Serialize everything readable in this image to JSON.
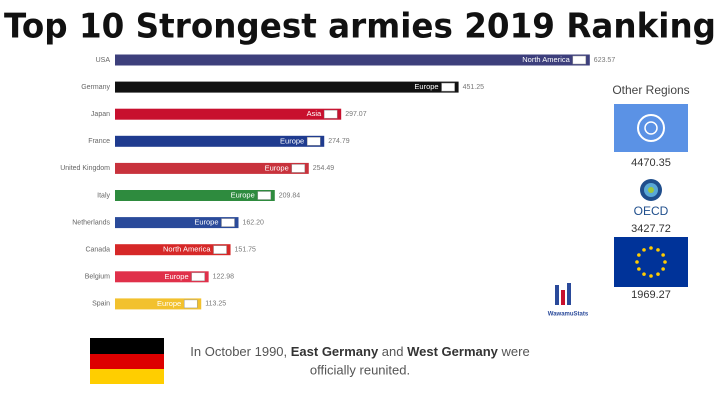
{
  "chart_data": {
    "type": "bar",
    "orientation": "horizontal",
    "title": "Top 10 Strongest armies 2019 Ranking",
    "categories": [
      "USA",
      "Germany",
      "Japan",
      "France",
      "United Kingdom",
      "Italy",
      "Netherlands",
      "Canada",
      "Belgium",
      "Spain"
    ],
    "values": [
      623.57,
      451.25,
      297.07,
      274.79,
      254.49,
      209.84,
      162.2,
      151.75,
      122.98,
      113.25
    ],
    "value_labels": [
      "623.57",
      "451.25",
      "297.07",
      "274.79",
      "254.49",
      "209.84",
      "162.20",
      "151.75",
      "122.98",
      "113.25"
    ],
    "regions": [
      "North America",
      "Europe",
      "Asia",
      "Europe",
      "Europe",
      "Europe",
      "Europe",
      "North America",
      "Europe",
      "Europe"
    ],
    "colors": [
      "#3d3f7c",
      "#111111",
      "#c8102e",
      "#1f3b8f",
      "#c8323c",
      "#2e8b3e",
      "#2a4a9a",
      "#d62828",
      "#e0304a",
      "#f2c12e"
    ],
    "xlim": [
      0,
      700
    ]
  },
  "other_regions": {
    "title": "Other Regions",
    "items": [
      {
        "value": 4470.35
      },
      {
        "label": "OECD",
        "value": 3427.72
      },
      {
        "value": 1969.27
      }
    ]
  },
  "caption": {
    "line1": [
      {
        "text": "In October 1990, "
      },
      {
        "text": "East Germany",
        "bold": true
      },
      {
        "text": " and "
      },
      {
        "text": "West Germany",
        "bold": true
      },
      {
        "text": " were"
      }
    ],
    "line2": "officially reunited."
  },
  "logo": "WawamuStats"
}
